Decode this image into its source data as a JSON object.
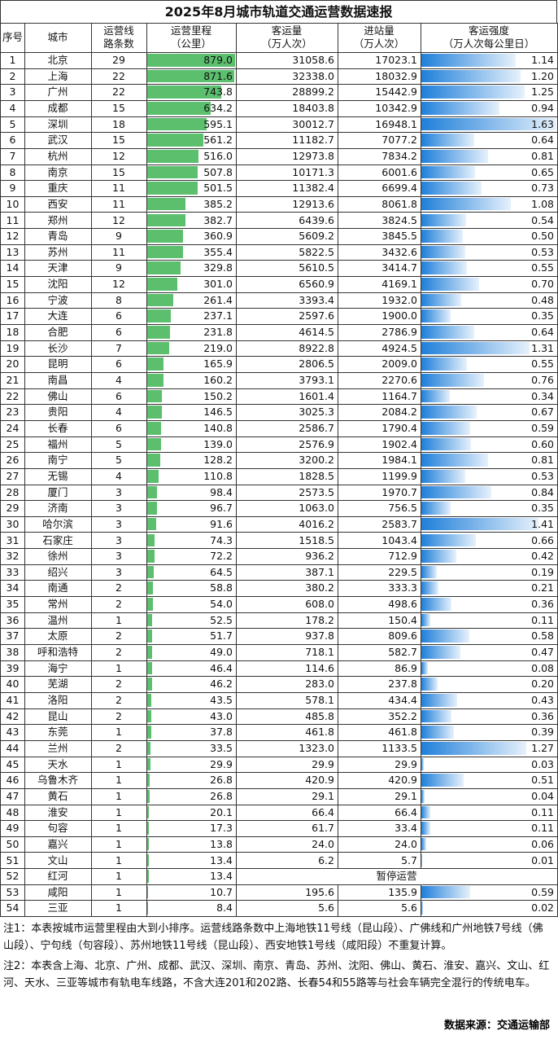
{
  "title": "2025年8月城市轨道交通运营数据速报",
  "table": {
    "headers": [
      [
        "序号"
      ],
      [
        "城市"
      ],
      [
        "运营线",
        "路条数"
      ],
      [
        "运营里程",
        "（公里）"
      ],
      [
        "客运量",
        "（万人次）"
      ],
      [
        "进站量",
        "（万人次）"
      ],
      [
        "客运强度",
        "（万人次每公里日）"
      ]
    ],
    "rows": [
      [
        "1",
        "北京",
        "29",
        "879.0",
        "31058.6",
        "17023.1",
        "1.14"
      ],
      [
        "2",
        "上海",
        "22",
        "871.6",
        "32338.0",
        "18032.9",
        "1.20"
      ],
      [
        "3",
        "广州",
        "22",
        "743.8",
        "28899.2",
        "15442.9",
        "1.25"
      ],
      [
        "4",
        "成都",
        "15",
        "634.2",
        "18403.8",
        "10342.9",
        "0.94"
      ],
      [
        "5",
        "深圳",
        "18",
        "595.1",
        "30012.7",
        "16948.1",
        "1.63"
      ],
      [
        "6",
        "武汉",
        "15",
        "561.2",
        "11182.7",
        "7077.2",
        "0.64"
      ],
      [
        "7",
        "杭州",
        "12",
        "516.0",
        "12973.8",
        "7834.2",
        "0.81"
      ],
      [
        "8",
        "南京",
        "15",
        "507.8",
        "10171.3",
        "6001.6",
        "0.65"
      ],
      [
        "9",
        "重庆",
        "11",
        "501.5",
        "11382.4",
        "6699.4",
        "0.73"
      ],
      [
        "10",
        "西安",
        "11",
        "385.2",
        "12913.6",
        "8061.8",
        "1.08"
      ],
      [
        "11",
        "郑州",
        "12",
        "382.7",
        "6439.6",
        "3824.5",
        "0.54"
      ],
      [
        "12",
        "青岛",
        "9",
        "360.9",
        "5609.2",
        "3845.5",
        "0.50"
      ],
      [
        "13",
        "苏州",
        "11",
        "355.4",
        "5822.5",
        "3432.6",
        "0.53"
      ],
      [
        "14",
        "天津",
        "9",
        "329.8",
        "5610.5",
        "3414.7",
        "0.55"
      ],
      [
        "15",
        "沈阳",
        "12",
        "301.0",
        "6560.9",
        "4169.1",
        "0.70"
      ],
      [
        "16",
        "宁波",
        "8",
        "261.4",
        "3393.4",
        "1932.0",
        "0.48"
      ],
      [
        "17",
        "大连",
        "6",
        "237.1",
        "2597.6",
        "1900.0",
        "0.35"
      ],
      [
        "18",
        "合肥",
        "6",
        "231.8",
        "4614.5",
        "2786.9",
        "0.64"
      ],
      [
        "19",
        "长沙",
        "7",
        "219.0",
        "8922.8",
        "4924.5",
        "1.31"
      ],
      [
        "20",
        "昆明",
        "6",
        "165.9",
        "2806.5",
        "2009.0",
        "0.55"
      ],
      [
        "21",
        "南昌",
        "4",
        "160.2",
        "3793.1",
        "2270.6",
        "0.76"
      ],
      [
        "22",
        "佛山",
        "6",
        "150.2",
        "1601.4",
        "1164.7",
        "0.34"
      ],
      [
        "23",
        "贵阳",
        "4",
        "146.5",
        "3025.3",
        "2084.2",
        "0.67"
      ],
      [
        "24",
        "长春",
        "6",
        "140.8",
        "2586.7",
        "1790.4",
        "0.59"
      ],
      [
        "25",
        "福州",
        "5",
        "139.0",
        "2576.9",
        "1902.4",
        "0.60"
      ],
      [
        "26",
        "南宁",
        "5",
        "128.2",
        "3200.2",
        "1984.1",
        "0.81"
      ],
      [
        "27",
        "无锡",
        "4",
        "110.8",
        "1828.5",
        "1199.9",
        "0.53"
      ],
      [
        "28",
        "厦门",
        "3",
        "98.4",
        "2573.5",
        "1970.7",
        "0.84"
      ],
      [
        "29",
        "济南",
        "3",
        "96.7",
        "1063.0",
        "756.5",
        "0.35"
      ],
      [
        "30",
        "哈尔滨",
        "3",
        "91.6",
        "4016.2",
        "2583.7",
        "1.41"
      ],
      [
        "31",
        "石家庄",
        "3",
        "74.3",
        "1518.5",
        "1043.4",
        "0.66"
      ],
      [
        "32",
        "徐州",
        "3",
        "72.2",
        "936.2",
        "712.9",
        "0.42"
      ],
      [
        "33",
        "绍兴",
        "3",
        "64.5",
        "387.1",
        "229.5",
        "0.19"
      ],
      [
        "34",
        "南通",
        "2",
        "58.8",
        "380.2",
        "333.3",
        "0.21"
      ],
      [
        "35",
        "常州",
        "2",
        "54.0",
        "608.0",
        "498.6",
        "0.36"
      ],
      [
        "36",
        "温州",
        "1",
        "52.5",
        "178.2",
        "150.4",
        "0.11"
      ],
      [
        "37",
        "太原",
        "2",
        "51.7",
        "937.8",
        "809.6",
        "0.58"
      ],
      [
        "38",
        "呼和浩特",
        "2",
        "49.0",
        "718.1",
        "582.7",
        "0.47"
      ],
      [
        "39",
        "海宁",
        "1",
        "46.4",
        "114.6",
        "86.9",
        "0.08"
      ],
      [
        "40",
        "芜湖",
        "2",
        "46.2",
        "283.0",
        "237.8",
        "0.20"
      ],
      [
        "41",
        "洛阳",
        "2",
        "43.5",
        "578.1",
        "434.4",
        "0.43"
      ],
      [
        "42",
        "昆山",
        "2",
        "43.0",
        "485.8",
        "352.2",
        "0.36"
      ],
      [
        "43",
        "东莞",
        "1",
        "37.8",
        "461.8",
        "461.8",
        "0.39"
      ],
      [
        "44",
        "兰州",
        "2",
        "33.5",
        "1323.0",
        "1133.5",
        "1.27"
      ],
      [
        "45",
        "天水",
        "1",
        "29.9",
        "29.9",
        "29.9",
        "0.03"
      ],
      [
        "46",
        "乌鲁木齐",
        "1",
        "26.8",
        "420.9",
        "420.9",
        "0.51"
      ],
      [
        "47",
        "黄石",
        "1",
        "26.8",
        "29.1",
        "29.1",
        "0.04"
      ],
      [
        "48",
        "淮安",
        "1",
        "20.1",
        "66.4",
        "66.4",
        "0.11"
      ],
      [
        "49",
        "句容",
        "1",
        "17.3",
        "61.7",
        "33.4",
        "0.11"
      ],
      [
        "50",
        "嘉兴",
        "1",
        "13.8",
        "24.0",
        "24.0",
        "0.06"
      ],
      [
        "51",
        "文山",
        "1",
        "13.4",
        "6.2",
        "5.7",
        "0.01"
      ],
      [
        "52",
        "红河",
        "1",
        "13.4",
        "暂停运营"
      ],
      [
        "53",
        "咸阳",
        "1",
        "10.7",
        "195.6",
        "135.9",
        "0.59"
      ],
      [
        "54",
        "三亚",
        "1",
        "8.4",
        "5.6",
        "5.6",
        "0.02"
      ]
    ]
  },
  "notes": [
    "注1：本表按城市运营里程由大到小排序。运营线路条数中上海地铁11号线（昆山段）、广佛线和广州地铁7号线（佛山段）、宁句线（句容段）、苏州地铁11号线（昆山段）、西安地铁1号线（咸阳段）不重复计算。",
    "注2：本表含上海、北京、广州、成都、武汉、深圳、南京、青岛、苏州、沈阳、佛山、黄石、淮安、嘉兴、文山、红河、天水、三亚等城市有轨电车线路，不含大连201和202路、长春54和55路等与社会车辆完全混行的传统电车。"
  ],
  "source": "数据来源：交通运输部"
}
